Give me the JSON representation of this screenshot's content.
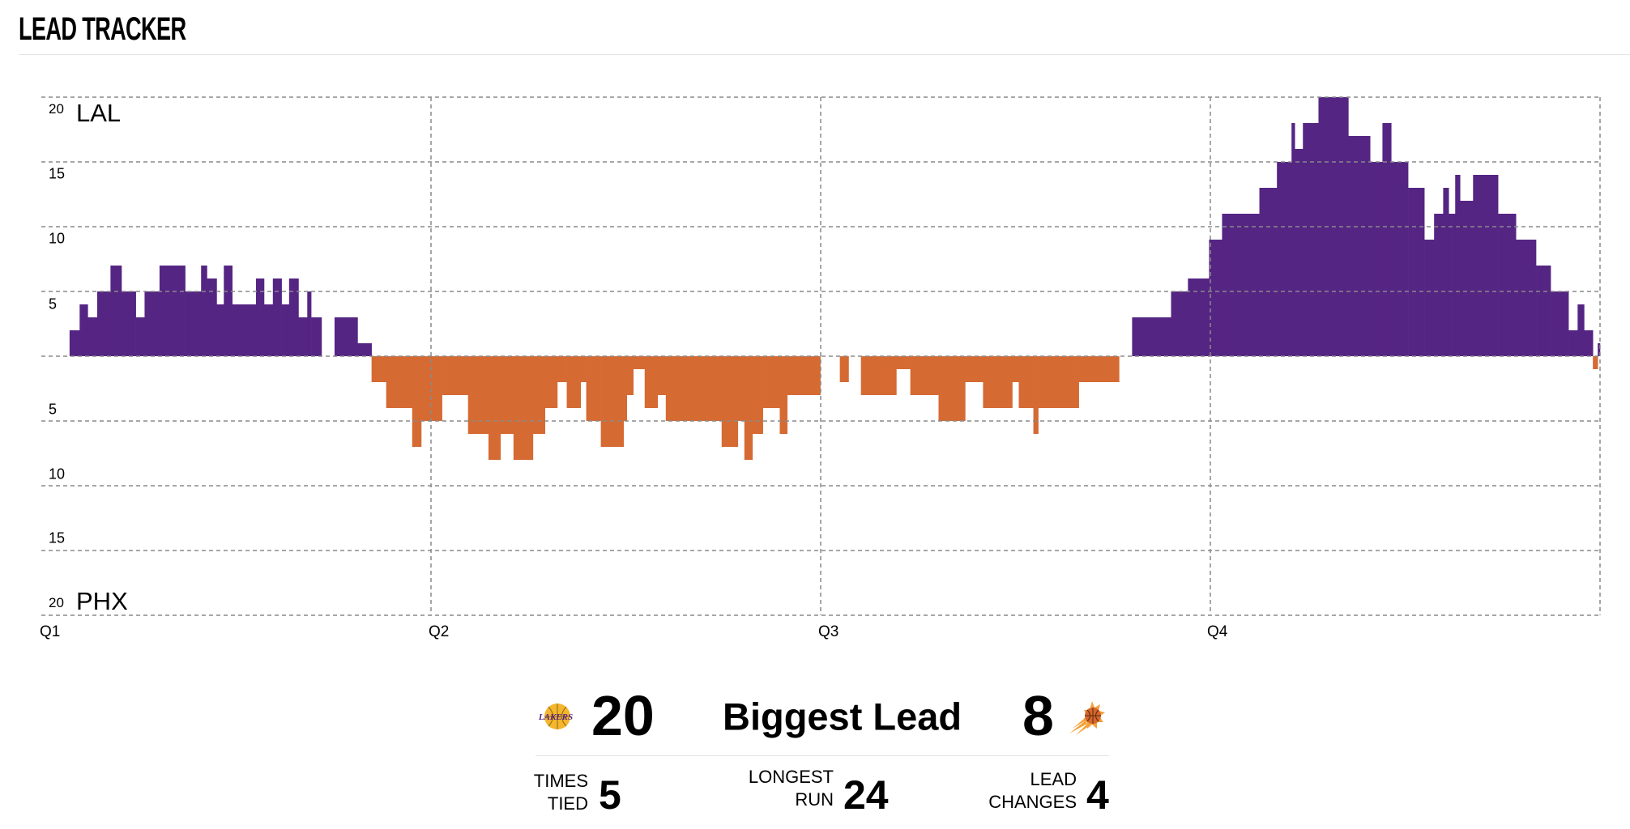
{
  "header": {
    "title": "LEAD TRACKER"
  },
  "colors": {
    "home": "#552583",
    "away": "#D56A33",
    "grid": "#8a8a8a"
  },
  "chart_data": {
    "type": "area",
    "title": "LEAD TRACKER",
    "x_unit": "game minutes",
    "xlim": [
      0,
      48
    ],
    "ylim": [
      -20,
      20
    ],
    "x_tick_labels": [
      "Q1",
      "Q2",
      "Q3",
      "Q4"
    ],
    "x_ticks": [
      0,
      12,
      24,
      36
    ],
    "y_tick_labels_top": [
      "20",
      "15",
      "10",
      "5"
    ],
    "y_tick_labels_bottom": [
      "5",
      "10",
      "15",
      "20"
    ],
    "y_ticks_top": [
      20,
      15,
      10,
      5
    ],
    "y_ticks_bottom": [
      -5,
      -10,
      -15,
      -20
    ],
    "positive_team": "LAL",
    "negative_team": "PHX",
    "grid": true,
    "series_note": "step series: [start minute, LAL margin (negative = PHX lead)]",
    "steps": [
      [
        0,
        0
      ],
      [
        0.87,
        2
      ],
      [
        1.18,
        4
      ],
      [
        1.43,
        3
      ],
      [
        1.72,
        5
      ],
      [
        2.13,
        7
      ],
      [
        2.47,
        5
      ],
      [
        2.91,
        3
      ],
      [
        3.18,
        5
      ],
      [
        3.64,
        7
      ],
      [
        4.43,
        5
      ],
      [
        4.92,
        7
      ],
      [
        5.1,
        6
      ],
      [
        5.4,
        4
      ],
      [
        5.62,
        7
      ],
      [
        5.88,
        4
      ],
      [
        6.61,
        6
      ],
      [
        6.86,
        4
      ],
      [
        7.13,
        6
      ],
      [
        7.4,
        4
      ],
      [
        7.63,
        6
      ],
      [
        7.92,
        3
      ],
      [
        8.19,
        5
      ],
      [
        8.31,
        3
      ],
      [
        8.63,
        0
      ],
      [
        9.03,
        3
      ],
      [
        9.74,
        1
      ],
      [
        10.17,
        -2
      ],
      [
        10.62,
        -4
      ],
      [
        11.42,
        -7
      ],
      [
        11.7,
        -5
      ],
      [
        12.34,
        -3
      ],
      [
        13.14,
        -6
      ],
      [
        13.77,
        -8
      ],
      [
        14.14,
        -6
      ],
      [
        14.54,
        -8
      ],
      [
        15.14,
        -6
      ],
      [
        15.51,
        -4
      ],
      [
        15.89,
        -2
      ],
      [
        16.18,
        -4
      ],
      [
        16.61,
        -2
      ],
      [
        16.78,
        -5
      ],
      [
        17.23,
        -7
      ],
      [
        17.93,
        -5
      ],
      [
        18.03,
        -3
      ],
      [
        18.23,
        -1
      ],
      [
        18.58,
        -4
      ],
      [
        18.98,
        -3
      ],
      [
        19.23,
        -5
      ],
      [
        20.95,
        -7
      ],
      [
        21.45,
        -5
      ],
      [
        21.65,
        -8
      ],
      [
        21.9,
        -6
      ],
      [
        22.22,
        -4
      ],
      [
        22.74,
        -6
      ],
      [
        22.97,
        -3
      ],
      [
        23.99,
        0
      ],
      [
        24.59,
        -2
      ],
      [
        24.86,
        0
      ],
      [
        25.24,
        -3
      ],
      [
        26.33,
        -1
      ],
      [
        26.76,
        -3
      ],
      [
        27.63,
        -5
      ],
      [
        28.45,
        -2
      ],
      [
        29.0,
        -4
      ],
      [
        29.9,
        -2
      ],
      [
        30.1,
        -4
      ],
      [
        30.55,
        -6
      ],
      [
        30.7,
        -4
      ],
      [
        31.95,
        -2
      ],
      [
        33.19,
        0
      ],
      [
        33.59,
        3
      ],
      [
        34.79,
        5
      ],
      [
        35.31,
        6
      ],
      [
        35.96,
        9
      ],
      [
        36.36,
        11
      ],
      [
        37.51,
        13
      ],
      [
        38.05,
        15
      ],
      [
        38.5,
        18
      ],
      [
        38.6,
        16
      ],
      [
        38.85,
        18
      ],
      [
        39.33,
        20
      ],
      [
        40.25,
        17
      ],
      [
        40.92,
        15
      ],
      [
        41.3,
        18
      ],
      [
        41.57,
        15
      ],
      [
        42.09,
        13
      ],
      [
        42.59,
        9
      ],
      [
        42.89,
        11
      ],
      [
        43.17,
        13
      ],
      [
        43.34,
        11
      ],
      [
        43.54,
        14
      ],
      [
        43.69,
        12
      ],
      [
        44.09,
        14
      ],
      [
        44.86,
        11
      ],
      [
        45.41,
        9
      ],
      [
        46.03,
        7
      ],
      [
        46.48,
        5
      ],
      [
        47.03,
        2
      ],
      [
        47.31,
        4
      ],
      [
        47.51,
        2
      ],
      [
        47.78,
        -1
      ],
      [
        47.93,
        1
      ]
    ],
    "end_minute": 48
  },
  "summary": {
    "home_logo_text": "LAKERS",
    "home_biggest_lead": "20",
    "biggest_lead_label": "Biggest Lead",
    "away_biggest_lead": "8",
    "stats": [
      {
        "label_line1": "TIMES",
        "label_line2": "TIED",
        "value": "5"
      },
      {
        "label_line1": "LONGEST",
        "label_line2": "RUN",
        "value": "24"
      },
      {
        "label_line1": "LEAD",
        "label_line2": "CHANGES",
        "value": "4"
      }
    ]
  }
}
